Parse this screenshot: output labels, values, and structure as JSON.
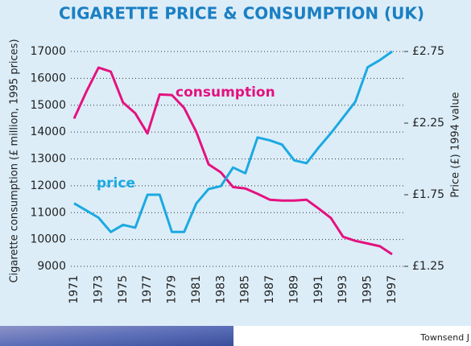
{
  "chart_data": {
    "type": "line",
    "title": "CIGARETTE PRICE & CONSUMPTION (UK)",
    "ylabel": "Cigarette consumption (£ million, 1995 prices)",
    "y2label": "Price (£) 1994 value",
    "source": "Townsend J",
    "x": [
      1971,
      1972,
      1973,
      1974,
      1975,
      1976,
      1977,
      1978,
      1979,
      1980,
      1981,
      1982,
      1983,
      1984,
      1985,
      1986,
      1987,
      1988,
      1989,
      1990,
      1991,
      1992,
      1993,
      1994,
      1995,
      1996,
      1997
    ],
    "xlim": [
      1971,
      1997
    ],
    "xticks": [
      1971,
      1973,
      1975,
      1977,
      1979,
      1981,
      1983,
      1985,
      1987,
      1989,
      1991,
      1993,
      1995,
      1997
    ],
    "ylim": [
      9000,
      17000
    ],
    "yticks": [
      9000,
      10000,
      11000,
      12000,
      13000,
      14000,
      15000,
      16000,
      17000
    ],
    "y2lim": [
      1.25,
      2.75
    ],
    "y2ticks": [
      {
        "value": 1.25,
        "label": "£1.25"
      },
      {
        "value": 1.75,
        "label": "£1.75"
      },
      {
        "value": 2.25,
        "label": "£2.25"
      },
      {
        "value": 2.75,
        "label": "£2.75"
      }
    ],
    "grid": true,
    "series": [
      {
        "name": "consumption",
        "color": "#e4127f",
        "values": [
          14500,
          15500,
          16400,
          16250,
          15100,
          14700,
          13950,
          15400,
          15380,
          14900,
          14000,
          12800,
          12500,
          11950,
          11900,
          11700,
          11480,
          11450,
          11450,
          11480,
          11150,
          10800,
          10100,
          9950,
          9850,
          9750,
          9450
        ]
      },
      {
        "name": "price",
        "color": "#1ba9e1",
        "axis": "y2",
        "values": [
          1.69,
          1.64,
          1.59,
          1.49,
          1.54,
          1.52,
          1.75,
          1.75,
          1.49,
          1.49,
          1.69,
          1.79,
          1.81,
          1.94,
          1.9,
          2.15,
          2.13,
          2.1,
          1.99,
          1.97,
          2.08,
          2.18,
          2.29,
          2.4,
          2.64,
          2.69,
          2.75
        ]
      }
    ]
  }
}
